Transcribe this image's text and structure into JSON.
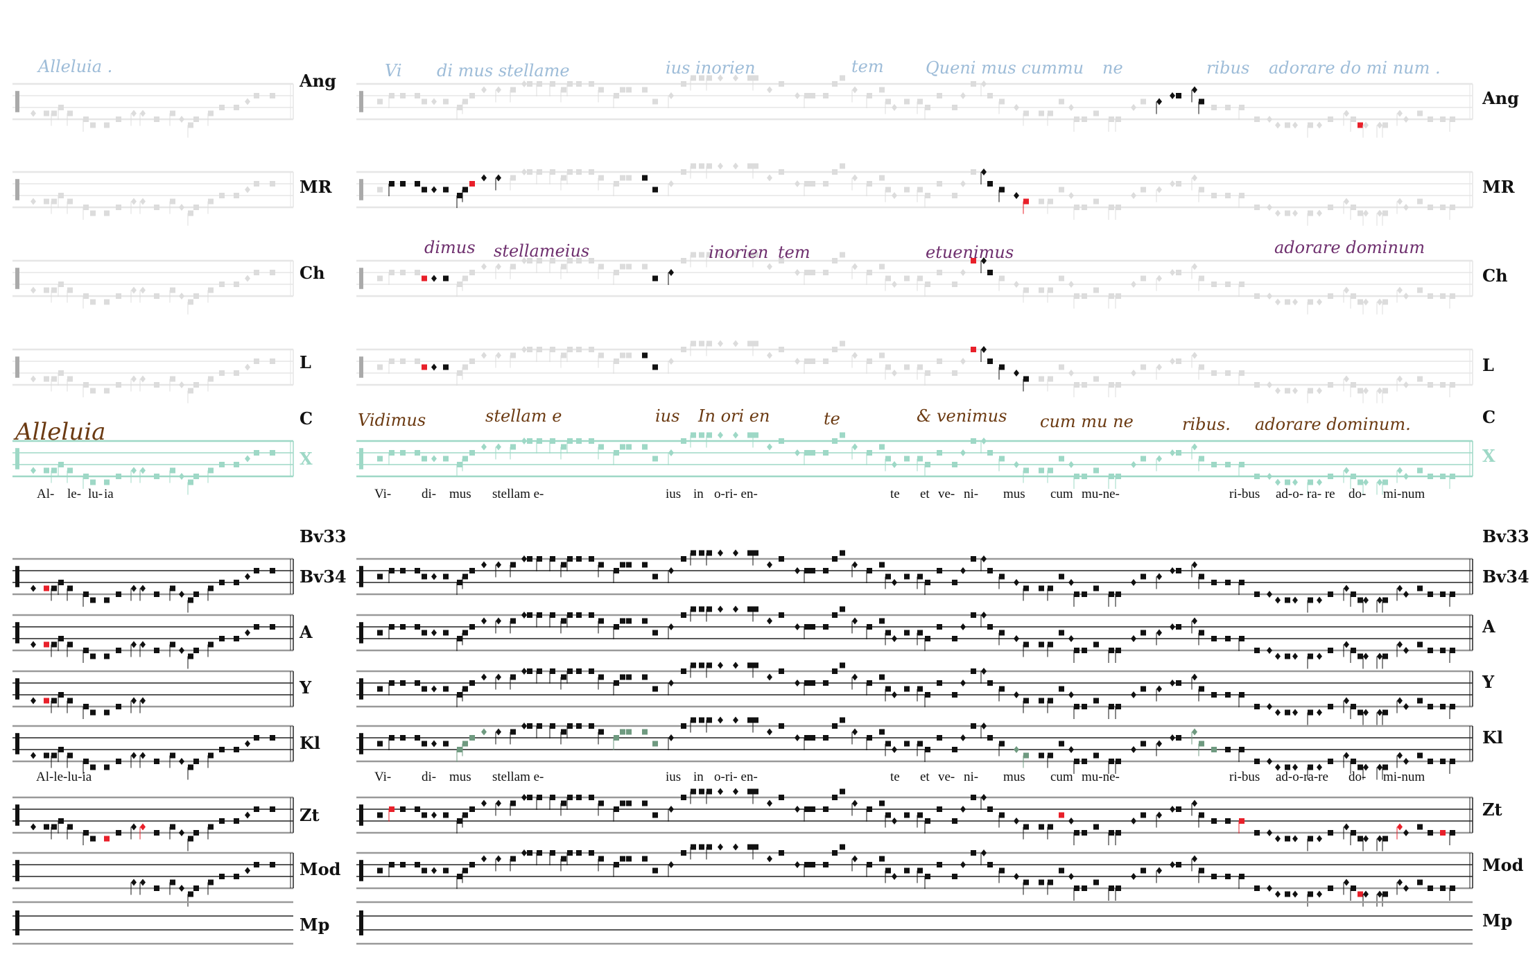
{
  "sources": [
    {
      "id": "ang",
      "label": "Ang"
    },
    {
      "id": "mr",
      "label": "MR"
    },
    {
      "id": "ch",
      "label": "Ch"
    },
    {
      "id": "l",
      "label": "L"
    },
    {
      "id": "c",
      "label": "C"
    },
    {
      "id": "x",
      "label": "X"
    },
    {
      "id": "bv33",
      "label": "Bv33"
    },
    {
      "id": "bv34",
      "label": "Bv34"
    },
    {
      "id": "a",
      "label": "A"
    },
    {
      "id": "y",
      "label": "Y"
    },
    {
      "id": "kl",
      "label": "Kl"
    },
    {
      "id": "zt",
      "label": "Zt"
    },
    {
      "id": "mod",
      "label": "Mod"
    },
    {
      "id": "mp",
      "label": "Mp"
    }
  ],
  "lyrics_upper": [
    "Al-",
    "le-",
    "lu-",
    "ia",
    "Vi-",
    "di-",
    "mus",
    "stellam e-",
    "ius",
    "in",
    "o-ri- en-",
    "te",
    "et",
    "ve-",
    "ni-",
    "mus",
    "cum",
    "mu-ne-",
    "ri-bus",
    "ad-o-",
    "ra- re",
    "do-",
    "mi-num"
  ],
  "lyrics_lower": [
    "Al-le-lu-ia",
    "Vi-",
    "di-",
    "mus",
    "stellam e-",
    "ius",
    "in",
    "o-ri- en-",
    "te",
    "et",
    "ve-",
    "ni-",
    "mus",
    "cum",
    "mu-ne-",
    "ri-bus",
    "ad-o-ra-re",
    "do-",
    "mi-num"
  ],
  "manuscripts": {
    "ang": {
      "color": "#9dbcd8",
      "words": [
        "Alleluia .",
        "Vi",
        "di mus stellame",
        "ius inorien",
        "tem",
        "Queni mus cummu",
        "ne",
        "ribus",
        "adorare do mi num ."
      ]
    },
    "ch": {
      "color": "#6e2f6e",
      "words": [
        "dimus",
        "stellameius",
        "inorien",
        "tem",
        "etuenimus",
        "adorare dominum"
      ]
    },
    "c": {
      "color": "#6b3a12",
      "words": [
        "Alleluia",
        "Vidimus",
        "stellam e",
        "ius",
        "In ori en",
        "te",
        "& venimus",
        "cum mu ne",
        "ribus.",
        "adorare dominum."
      ]
    }
  },
  "colors": {
    "ink": "#111111",
    "faded": "#dcdcdc",
    "variant_red": "#e8202a",
    "x_teal": "#9ed8c6",
    "kl_green": "#6f9a80"
  }
}
